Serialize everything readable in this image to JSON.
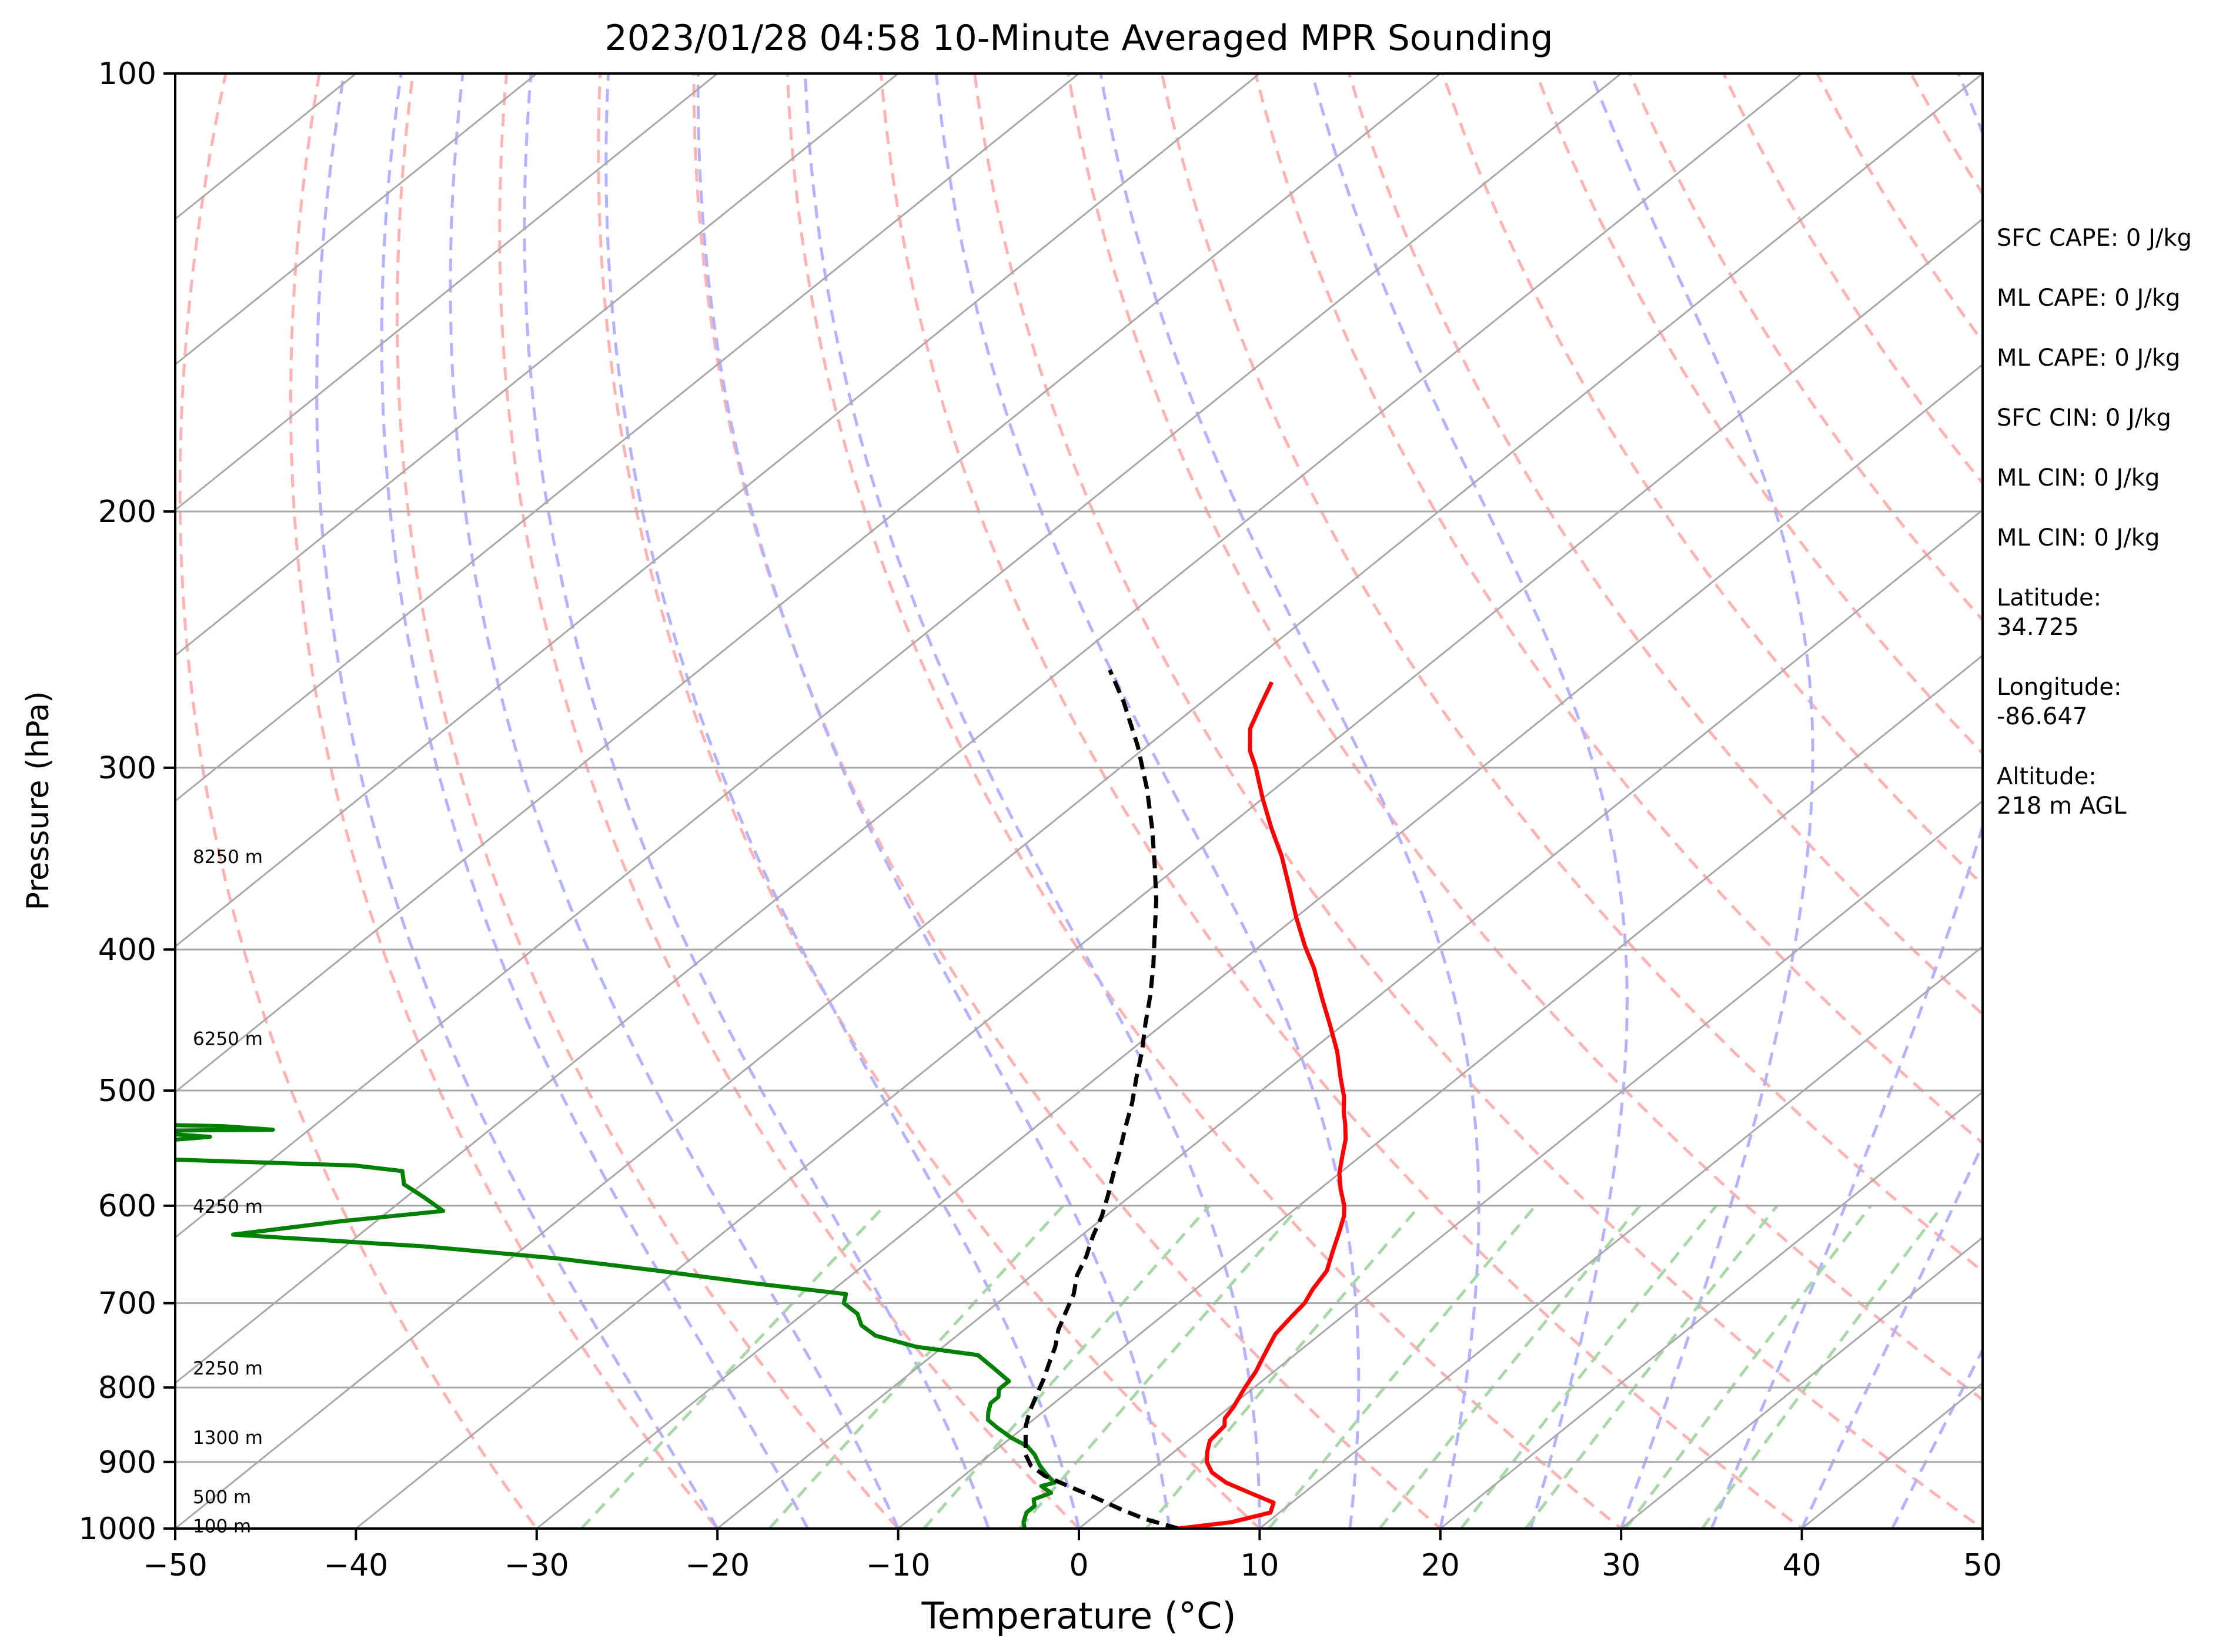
{
  "chart_data": {
    "type": "line",
    "title": "2023/01/28 04:58 10-Minute Averaged MPR Sounding",
    "xlabel": "Temperature (°C)",
    "ylabel": "Pressure (hPa)",
    "xlim": [
      -50,
      50
    ],
    "ylim": [
      1000,
      100
    ],
    "y_scale": "log",
    "skew": "skew-T",
    "grid": true,
    "x_ticks": [
      "−50",
      "−40",
      "−30",
      "−20",
      "−10",
      "0",
      "10",
      "20",
      "30",
      "40",
      "50"
    ],
    "y_ticks": [
      100,
      200,
      300,
      400,
      500,
      600,
      700,
      800,
      900,
      1000
    ],
    "series": [
      {
        "color": "#ff0000",
        "points": [
          [
            5.5,
            1000
          ],
          [
            8.0,
            990
          ],
          [
            9.5,
            975
          ],
          [
            9.0,
            960
          ],
          [
            7.0,
            945
          ],
          [
            5.0,
            930
          ],
          [
            3.5,
            915
          ],
          [
            2.5,
            900
          ],
          [
            1.8,
            885
          ],
          [
            1.2,
            870
          ],
          [
            1.0,
            850
          ],
          [
            0.5,
            840
          ],
          [
            0.2,
            825
          ],
          [
            -0.5,
            800
          ],
          [
            -1.0,
            780
          ],
          [
            -1.5,
            765
          ],
          [
            -2.0,
            750
          ],
          [
            -2.5,
            735
          ],
          [
            -2.8,
            715
          ],
          [
            -3.0,
            700
          ],
          [
            -3.5,
            685
          ],
          [
            -4.0,
            665
          ],
          [
            -5.0,
            645
          ],
          [
            -6.0,
            625
          ],
          [
            -6.8,
            610
          ],
          [
            -7.5,
            600
          ],
          [
            -8.8,
            585
          ],
          [
            -10.0,
            570
          ],
          [
            -11.0,
            555
          ],
          [
            -12.0,
            540
          ],
          [
            -13.0,
            528
          ],
          [
            -14.0,
            517
          ],
          [
            -15.0,
            505
          ],
          [
            -16.5,
            490
          ],
          [
            -18.5,
            470
          ],
          [
            -20.8,
            450
          ],
          [
            -23.0,
            432
          ],
          [
            -25.5,
            412
          ],
          [
            -27.5,
            398
          ],
          [
            -30.0,
            380
          ],
          [
            -32.5,
            362
          ],
          [
            -35.0,
            345
          ],
          [
            -37.5,
            330
          ],
          [
            -40.0,
            315
          ],
          [
            -42.5,
            300
          ],
          [
            -44.0,
            292
          ],
          [
            -45.5,
            282
          ],
          [
            -46.5,
            272
          ],
          [
            -47.5,
            262
          ]
        ]
      },
      {
        "color": "#008000",
        "points": [
          [
            -3.0,
            1000
          ],
          [
            -3.5,
            990
          ],
          [
            -4.0,
            975
          ],
          [
            -4.0,
            965
          ],
          [
            -4.5,
            955
          ],
          [
            -4.0,
            945
          ],
          [
            -5.0,
            935
          ],
          [
            -4.5,
            930
          ],
          [
            -5.5,
            918
          ],
          [
            -6.5,
            905
          ],
          [
            -7.5,
            890
          ],
          [
            -8.5,
            878
          ],
          [
            -10.0,
            866
          ],
          [
            -11.5,
            852
          ],
          [
            -12.5,
            842
          ],
          [
            -13.0,
            832
          ],
          [
            -13.5,
            820
          ],
          [
            -13.5,
            812
          ],
          [
            -14.0,
            802
          ],
          [
            -14.0,
            792
          ],
          [
            -15.5,
            778
          ],
          [
            -17.5,
            760
          ],
          [
            -21.5,
            750
          ],
          [
            -24.5,
            737
          ],
          [
            -26.0,
            725
          ],
          [
            -27.0,
            712
          ],
          [
            -28.5,
            700
          ],
          [
            -29.0,
            690
          ],
          [
            -35.0,
            678
          ],
          [
            -41.0,
            665
          ],
          [
            -47.5,
            652
          ],
          [
            -55.5,
            640
          ],
          [
            -67.0,
            628
          ],
          [
            -62.0,
            615
          ],
          [
            -57.0,
            605
          ],
          [
            -59.0,
            592
          ],
          [
            -61.0,
            580
          ],
          [
            -62.0,
            568
          ],
          [
            -65.0,
            563
          ],
          [
            -75.0,
            558
          ],
          [
            -85.0,
            555
          ],
          [
            -80.0,
            545
          ],
          [
            -75.0,
            538
          ],
          [
            -80.0,
            533
          ],
          [
            -72.0,
            532
          ],
          [
            -75.0,
            529
          ],
          [
            -85.0,
            526
          ]
        ]
      },
      {
        "color": "#000000",
        "dash": "dashed",
        "points": [
          [
            5.5,
            1000
          ],
          [
            3.0,
            985
          ],
          [
            1.0,
            970
          ],
          [
            -1.5,
            950
          ],
          [
            -3.5,
            935
          ],
          [
            -5.5,
            920
          ],
          [
            -7.0,
            905
          ],
          [
            -8.0,
            890
          ],
          [
            -9.0,
            870
          ],
          [
            -10.0,
            850
          ],
          [
            -10.8,
            830
          ],
          [
            -11.5,
            810
          ],
          [
            -12.2,
            790
          ],
          [
            -13.0,
            770
          ],
          [
            -13.8,
            750
          ],
          [
            -14.8,
            730
          ],
          [
            -15.6,
            710
          ],
          [
            -16.4,
            690
          ],
          [
            -17.5,
            670
          ],
          [
            -18.3,
            650
          ],
          [
            -19.3,
            630
          ],
          [
            -20.2,
            610
          ],
          [
            -21.3,
            590
          ],
          [
            -22.5,
            570
          ],
          [
            -23.7,
            550
          ],
          [
            -25.0,
            530
          ],
          [
            -26.3,
            510
          ],
          [
            -27.8,
            490
          ],
          [
            -29.3,
            470
          ],
          [
            -31.0,
            450
          ],
          [
            -32.7,
            430
          ],
          [
            -34.6,
            410
          ],
          [
            -36.7,
            390
          ],
          [
            -38.9,
            370
          ],
          [
            -41.4,
            350
          ],
          [
            -44.1,
            330
          ],
          [
            -47.1,
            310
          ],
          [
            -50.5,
            290
          ],
          [
            -54.4,
            270
          ],
          [
            -57.3,
            257
          ]
        ]
      }
    ],
    "height_labels": [
      {
        "text": "100 m",
        "p": 995
      },
      {
        "text": "500 m",
        "p": 950
      },
      {
        "text": "1300 m",
        "p": 865
      },
      {
        "text": "2250 m",
        "p": 775
      },
      {
        "text": "4250 m",
        "p": 600
      },
      {
        "text": "6250 m",
        "p": 460
      },
      {
        "text": "8250 m",
        "p": 345
      }
    ],
    "annotations": [
      [
        "SFC CAPE: 0 J/kg"
      ],
      [
        "ML CAPE: 0 J/kg"
      ],
      [
        "ML CAPE: 0 J/kg"
      ],
      [
        "SFC CIN: 0 J/kg"
      ],
      [
        "ML CIN: 0 J/kg"
      ],
      [
        "ML CIN: 0 J/kg"
      ],
      [
        "Latitude:",
        "34.725"
      ],
      [
        "Longitude:",
        "-86.647"
      ],
      [
        "Altitude:",
        "218 m AGL"
      ]
    ],
    "colors": {
      "isotherm": "#a8a8a8",
      "dry_adiabat": "#ffb3b3",
      "moist_adiabat": "#b3b3ff",
      "mixing_ratio": "#a8d8a8"
    }
  }
}
